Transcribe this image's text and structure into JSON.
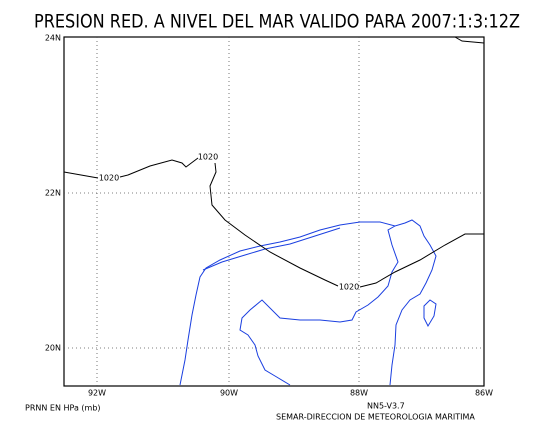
{
  "header": {
    "title": "PRESION RED. A NIVEL DEL MAR VALIDO PARA 2007:1:3:12Z"
  },
  "map": {
    "lat_labels": [
      "24N",
      "22N",
      "20N"
    ],
    "lon_labels": [
      "92W",
      "90W",
      "88W",
      "86W"
    ],
    "contour_labels": [
      "1020",
      "1020",
      "1020"
    ]
  },
  "footer": {
    "units": "PRNN EN HPa (mb)",
    "version": "NN5-V3.7",
    "credit": "SEMAR-DIRECCION DE METEOROLOGIA MARITIMA"
  }
}
